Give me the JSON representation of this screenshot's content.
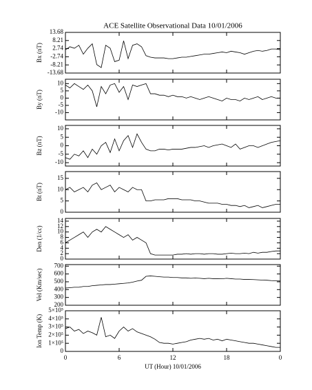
{
  "chart_data": [
    {
      "type": "line",
      "title": "ACE Satellite Observational Data  10/01/2006",
      "ylabel": "Bx (nT)",
      "color": "#000000",
      "x": [
        0,
        0.5,
        1,
        1.5,
        2,
        2.5,
        3,
        3.5,
        4,
        4.5,
        5,
        5.5,
        6,
        6.5,
        7,
        7.5,
        8,
        8.5,
        9,
        9.5,
        10,
        10.5,
        11,
        11.5,
        12,
        12.5,
        13,
        13.5,
        14,
        14.5,
        15,
        15.5,
        16,
        16.5,
        17,
        17.5,
        18,
        18.5,
        19,
        19.5,
        20,
        20.5,
        21,
        21.5,
        22,
        22.5,
        23,
        23.5,
        24
      ],
      "values": [
        2,
        4,
        3,
        5,
        -1,
        3,
        6,
        -8,
        -10,
        5,
        3,
        -6,
        -5,
        8,
        -4,
        5,
        6,
        4,
        -2,
        -3,
        -3.5,
        -3.5,
        -3.5,
        -4,
        -4,
        -3.5,
        -3,
        -3,
        -2.5,
        -2,
        -1.5,
        -1,
        -1,
        -0.5,
        0,
        0.5,
        0,
        1,
        0.5,
        0,
        -1,
        0,
        1,
        1.5,
        1,
        1.5,
        2.5,
        2.5,
        2
      ],
      "xlim": [
        0,
        24
      ],
      "ylim": [
        -13.68,
        13.68
      ],
      "yticks": [
        -13.68,
        -8.21,
        -2.74,
        2.74,
        8.21,
        13.68
      ]
    },
    {
      "type": "line",
      "ylabel": "By (nT)",
      "color": "#000000",
      "x": [
        0,
        0.5,
        1,
        1.5,
        2,
        2.5,
        3,
        3.5,
        4,
        4.5,
        5,
        5.5,
        6,
        6.5,
        7,
        7.5,
        8,
        8.5,
        9,
        9.5,
        10,
        10.5,
        11,
        11.5,
        12,
        12.5,
        13,
        13.5,
        14,
        14.5,
        15,
        15.5,
        16,
        16.5,
        17,
        17.5,
        18,
        18.5,
        19,
        19.5,
        20,
        20.5,
        21,
        21.5,
        22,
        22.5,
        23,
        23.5,
        24
      ],
      "values": [
        9,
        7,
        10,
        8,
        6,
        9,
        5,
        -6,
        8,
        3,
        9,
        10,
        4,
        8,
        -1,
        9,
        8,
        9,
        10,
        3,
        3,
        2,
        2,
        1,
        2,
        1,
        1,
        0,
        1,
        0,
        -1,
        0,
        1,
        0,
        -1,
        -2,
        0,
        -1,
        -1,
        -2,
        0,
        -1,
        0,
        1,
        -1,
        0,
        1,
        0,
        0
      ],
      "xlim": [
        0,
        24
      ],
      "ylim": [
        -15,
        13
      ],
      "yticks": [
        -10,
        -5,
        0,
        5,
        10
      ]
    },
    {
      "type": "line",
      "ylabel": "Bz (nT)",
      "color": "#000000",
      "x": [
        0,
        0.5,
        1,
        1.5,
        2,
        2.5,
        3,
        3.5,
        4,
        4.5,
        5,
        5.5,
        6,
        6.5,
        7,
        7.5,
        8,
        8.5,
        9,
        9.5,
        10,
        10.5,
        11,
        11.5,
        12,
        12.5,
        13,
        13.5,
        14,
        14.5,
        15,
        15.5,
        16,
        16.5,
        17,
        17.5,
        18,
        18.5,
        19,
        19.5,
        20,
        20.5,
        21,
        21.5,
        22,
        22.5,
        23,
        23.5,
        24
      ],
      "values": [
        -7,
        -8,
        -5,
        -6,
        -3,
        -7,
        -2,
        -5,
        0,
        2,
        -4,
        4,
        -3,
        3,
        6,
        -1,
        7,
        2,
        -2,
        -3,
        -3,
        -2,
        -2,
        -2.5,
        -2,
        -2,
        -2,
        -1.5,
        -1,
        -1,
        -0.5,
        0,
        -1,
        0,
        0.5,
        1,
        0,
        -1,
        1,
        -2,
        -1,
        0,
        0,
        -1,
        0,
        1,
        2,
        2.5,
        3
      ],
      "xlim": [
        0,
        24
      ],
      "ylim": [
        -12,
        12
      ],
      "yticks": [
        -10,
        -5,
        0,
        5,
        10
      ]
    },
    {
      "type": "line",
      "ylabel": "Bt (nT)",
      "color": "#000000",
      "x": [
        0,
        0.5,
        1,
        1.5,
        2,
        2.5,
        3,
        3.5,
        4,
        4.5,
        5,
        5.5,
        6,
        6.5,
        7,
        7.5,
        8,
        8.5,
        9,
        9.5,
        10,
        10.5,
        11,
        11.5,
        12,
        12.5,
        13,
        13.5,
        14,
        14.5,
        15,
        15.5,
        16,
        16.5,
        17,
        17.5,
        18,
        18.5,
        19,
        19.5,
        20,
        20.5,
        21,
        21.5,
        22,
        22.5,
        23,
        23.5,
        24
      ],
      "values": [
        10,
        11,
        9,
        10,
        11,
        9,
        12,
        13,
        10,
        11,
        12,
        9,
        11,
        10,
        9,
        11,
        10,
        10,
        5,
        5,
        5.5,
        5.5,
        5.5,
        6,
        6,
        6,
        5.5,
        5.5,
        5.5,
        5,
        5,
        4.5,
        4,
        4,
        4,
        3.5,
        3.5,
        3,
        3,
        2.5,
        3,
        2,
        2.5,
        3,
        2,
        2.5,
        3,
        3.5,
        3.5
      ],
      "xlim": [
        0,
        24
      ],
      "ylim": [
        0,
        18
      ],
      "yticks": [
        0,
        5,
        10,
        15
      ]
    },
    {
      "type": "line",
      "ylabel": "Den (1/cc)",
      "color": "#000000",
      "x": [
        0,
        0.5,
        1,
        1.5,
        2,
        2.5,
        3,
        3.5,
        4,
        4.5,
        5,
        5.5,
        6,
        6.5,
        7,
        7.5,
        8,
        8.5,
        9,
        9.5,
        10,
        10.5,
        11,
        11.5,
        12,
        12.5,
        13,
        13.5,
        14,
        14.5,
        15,
        15.5,
        16,
        16.5,
        17,
        17.5,
        18,
        18.5,
        19,
        19.5,
        20,
        20.5,
        21,
        21.5,
        22,
        22.5,
        23,
        23.5,
        24
      ],
      "values": [
        6,
        7,
        8,
        9,
        10,
        8,
        10,
        11,
        10,
        12,
        11,
        10,
        9,
        8,
        9,
        7,
        8,
        7,
        6,
        2,
        1.5,
        1.5,
        1.5,
        1.5,
        1.5,
        1.8,
        1.8,
        2,
        1.8,
        2,
        2,
        1.8,
        2,
        2,
        1.8,
        1.8,
        2,
        2.2,
        2,
        2,
        2.2,
        2,
        2.5,
        2.2,
        2.5,
        2.5,
        2.8,
        3,
        3
      ],
      "xlim": [
        0,
        24
      ],
      "ylim": [
        0,
        15
      ],
      "yticks": [
        0,
        2,
        4,
        6,
        8,
        10,
        12,
        14
      ]
    },
    {
      "type": "line",
      "ylabel": "Vel (Km/sec)",
      "color": "#000000",
      "x": [
        0,
        0.5,
        1,
        1.5,
        2,
        2.5,
        3,
        3.5,
        4,
        4.5,
        5,
        5.5,
        6,
        6.5,
        7,
        7.5,
        8,
        8.5,
        9,
        9.5,
        10,
        10.5,
        11,
        11.5,
        12,
        12.5,
        13,
        13.5,
        14,
        14.5,
        15,
        15.5,
        16,
        16.5,
        17,
        17.5,
        18,
        18.5,
        19,
        19.5,
        20,
        20.5,
        21,
        21.5,
        22,
        22.5,
        23,
        23.5,
        24
      ],
      "values": [
        420,
        425,
        430,
        430,
        440,
        440,
        450,
        455,
        460,
        465,
        465,
        470,
        475,
        480,
        485,
        495,
        510,
        520,
        570,
        575,
        570,
        565,
        560,
        560,
        555,
        555,
        550,
        550,
        545,
        548,
        545,
        540,
        545,
        540,
        540,
        538,
        545,
        540,
        535,
        535,
        530,
        530,
        528,
        525,
        522,
        520,
        515,
        512,
        510
      ],
      "xlim": [
        0,
        24
      ],
      "ylim": [
        200,
        720
      ],
      "yticks": [
        200,
        300,
        400,
        500,
        600,
        700
      ]
    },
    {
      "type": "line",
      "ylabel": "Ion Temp (K)",
      "xlabel": "UT (Hour)  10/01/2006",
      "color": "#000000",
      "x": [
        0,
        0.5,
        1,
        1.5,
        2,
        2.5,
        3,
        3.5,
        4,
        4.5,
        5,
        5.5,
        6,
        6.5,
        7,
        7.5,
        8,
        8.5,
        9,
        9.5,
        10,
        10.5,
        11,
        11.5,
        12,
        12.5,
        13,
        13.5,
        14,
        14.5,
        15,
        15.5,
        16,
        16.5,
        17,
        17.5,
        18,
        18.5,
        19,
        19.5,
        20,
        20.5,
        21,
        21.5,
        22,
        22.5,
        23,
        23.5,
        24
      ],
      "values": [
        280000,
        300000,
        250000,
        270000,
        220000,
        250000,
        230000,
        200000,
        420000,
        180000,
        200000,
        160000,
        250000,
        300000,
        250000,
        280000,
        240000,
        220000,
        200000,
        180000,
        150000,
        110000,
        100000,
        100000,
        90000,
        100000,
        110000,
        120000,
        140000,
        150000,
        160000,
        150000,
        160000,
        140000,
        150000,
        130000,
        150000,
        140000,
        130000,
        120000,
        110000,
        100000,
        100000,
        90000,
        80000,
        70000,
        60000,
        50000,
        50000
      ],
      "xlim": [
        0,
        24
      ],
      "ylim": [
        0,
        500000
      ],
      "yticks": [
        0,
        {
          "value": 100000,
          "label": "1×10⁵"
        },
        {
          "value": 200000,
          "label": "2×10⁵"
        },
        {
          "value": 300000,
          "label": "3×10⁵"
        },
        {
          "value": 400000,
          "label": "4×10⁵"
        },
        {
          "value": 500000,
          "label": "5×10⁵"
        }
      ],
      "xticks": [
        0,
        6,
        12,
        18,
        {
          "value": 24,
          "label": "0"
        }
      ]
    }
  ]
}
